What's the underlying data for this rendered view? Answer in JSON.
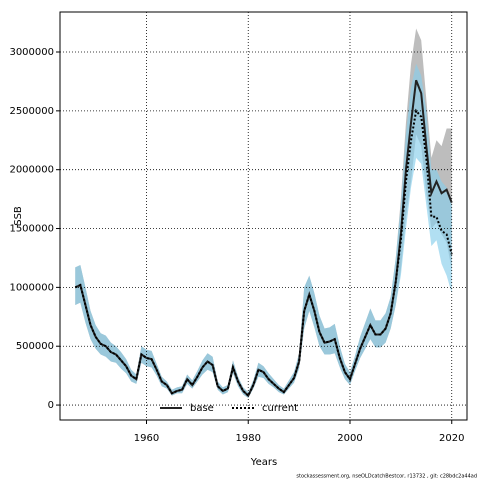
{
  "chart_data": {
    "type": "line",
    "xlabel": "Years",
    "ylabel": "SSB",
    "note": "stockassessment.org, nseOLDcatchBestcor, r13732 , git: c28bdc2a44ad",
    "x": [
      1946,
      1947,
      1948,
      1949,
      1950,
      1951,
      1952,
      1953,
      1954,
      1955,
      1956,
      1957,
      1958,
      1959,
      1960,
      1961,
      1962,
      1963,
      1964,
      1965,
      1966,
      1967,
      1968,
      1969,
      1970,
      1971,
      1972,
      1973,
      1974,
      1975,
      1976,
      1977,
      1978,
      1979,
      1980,
      1981,
      1982,
      1983,
      1984,
      1985,
      1986,
      1987,
      1988,
      1989,
      1990,
      1991,
      1992,
      1993,
      1994,
      1995,
      1996,
      1997,
      1998,
      1999,
      2000,
      2001,
      2002,
      2003,
      2004,
      2005,
      2006,
      2007,
      2008,
      2009,
      2010,
      2011,
      2012,
      2013,
      2014,
      2015,
      2016,
      2017,
      2018,
      2019,
      2020
    ],
    "series": [
      {
        "name": "base",
        "color": "#222222",
        "band_color": "#9a9a9a",
        "dash": false,
        "values": [
          1000000,
          1020000,
          850000,
          680000,
          580000,
          520000,
          500000,
          450000,
          430000,
          380000,
          330000,
          250000,
          220000,
          430000,
          400000,
          390000,
          300000,
          200000,
          170000,
          100000,
          120000,
          130000,
          220000,
          170000,
          240000,
          320000,
          370000,
          340000,
          160000,
          120000,
          140000,
          320000,
          200000,
          120000,
          80000,
          170000,
          300000,
          280000,
          220000,
          180000,
          140000,
          110000,
          170000,
          230000,
          370000,
          800000,
          940000,
          800000,
          620000,
          530000,
          540000,
          560000,
          400000,
          280000,
          220000,
          350000,
          480000,
          580000,
          680000,
          600000,
          600000,
          650000,
          780000,
          1050000,
          1450000,
          2000000,
          2400000,
          2760000,
          2650000,
          2200000,
          1800000,
          1900000,
          1800000,
          1830000,
          1720000
        ],
        "upper": [
          1170000,
          1190000,
          1000000,
          800000,
          680000,
          610000,
          590000,
          530000,
          500000,
          450000,
          390000,
          300000,
          260000,
          500000,
          470000,
          460000,
          350000,
          240000,
          200000,
          130000,
          150000,
          160000,
          260000,
          210000,
          290000,
          380000,
          440000,
          410000,
          200000,
          150000,
          170000,
          380000,
          240000,
          150000,
          110000,
          210000,
          360000,
          330000,
          270000,
          220000,
          170000,
          140000,
          210000,
          280000,
          440000,
          1000000,
          1100000,
          950000,
          760000,
          650000,
          660000,
          690000,
          500000,
          350000,
          280000,
          420000,
          580000,
          700000,
          820000,
          720000,
          720000,
          780000,
          920000,
          1250000,
          1750000,
          2400000,
          2900000,
          3200000,
          3100000,
          2600000,
          2100000,
          2250000,
          2200000,
          2350000,
          2350000
        ],
        "lower": [
          850000,
          870000,
          700000,
          560000,
          480000,
          430000,
          410000,
          370000,
          360000,
          310000,
          270000,
          200000,
          180000,
          360000,
          330000,
          320000,
          250000,
          160000,
          140000,
          80000,
          100000,
          100000,
          180000,
          140000,
          200000,
          260000,
          300000,
          280000,
          130000,
          90000,
          110000,
          270000,
          160000,
          90000,
          60000,
          140000,
          240000,
          230000,
          180000,
          150000,
          110000,
          90000,
          140000,
          190000,
          310000,
          650000,
          800000,
          660000,
          500000,
          430000,
          430000,
          440000,
          320000,
          220000,
          170000,
          290000,
          400000,
          480000,
          560000,
          490000,
          490000,
          530000,
          650000,
          850000,
          1150000,
          1600000,
          1900000,
          2300000,
          2200000,
          1800000,
          1500000,
          1550000,
          1450000,
          1380000,
          1150000
        ]
      },
      {
        "name": "current",
        "color": "#000000",
        "band_color": "#87ceeb",
        "dash": true,
        "values": [
          1000000,
          1020000,
          850000,
          680000,
          580000,
          520000,
          500000,
          450000,
          430000,
          380000,
          330000,
          250000,
          220000,
          430000,
          400000,
          390000,
          300000,
          200000,
          170000,
          100000,
          120000,
          130000,
          220000,
          170000,
          240000,
          320000,
          370000,
          340000,
          160000,
          120000,
          140000,
          320000,
          200000,
          120000,
          80000,
          170000,
          300000,
          280000,
          220000,
          180000,
          140000,
          110000,
          170000,
          230000,
          370000,
          800000,
          940000,
          800000,
          620000,
          530000,
          540000,
          560000,
          400000,
          280000,
          220000,
          350000,
          480000,
          580000,
          680000,
          600000,
          600000,
          650000,
          780000,
          1050000,
          1400000,
          1900000,
          2250000,
          2500000,
          2450000,
          2100000,
          1600000,
          1600000,
          1480000,
          1450000,
          1280000
        ],
        "upper": [
          1170000,
          1190000,
          1000000,
          800000,
          680000,
          610000,
          590000,
          530000,
          500000,
          450000,
          390000,
          300000,
          260000,
          500000,
          470000,
          460000,
          350000,
          240000,
          200000,
          130000,
          150000,
          160000,
          260000,
          210000,
          290000,
          380000,
          440000,
          410000,
          200000,
          150000,
          170000,
          380000,
          240000,
          150000,
          110000,
          210000,
          360000,
          330000,
          270000,
          220000,
          170000,
          140000,
          210000,
          280000,
          440000,
          1000000,
          1100000,
          950000,
          760000,
          650000,
          660000,
          690000,
          500000,
          350000,
          280000,
          420000,
          580000,
          700000,
          820000,
          720000,
          720000,
          780000,
          920000,
          1250000,
          1700000,
          2300000,
          2700000,
          2900000,
          2800000,
          2500000,
          2000000,
          2000000,
          1900000,
          1850000,
          1700000
        ],
        "lower": [
          850000,
          870000,
          700000,
          560000,
          480000,
          430000,
          410000,
          370000,
          360000,
          310000,
          270000,
          200000,
          180000,
          360000,
          330000,
          320000,
          250000,
          160000,
          140000,
          80000,
          100000,
          100000,
          180000,
          140000,
          200000,
          260000,
          300000,
          280000,
          130000,
          90000,
          110000,
          270000,
          160000,
          90000,
          60000,
          140000,
          240000,
          230000,
          180000,
          150000,
          110000,
          90000,
          140000,
          190000,
          310000,
          650000,
          800000,
          660000,
          500000,
          430000,
          430000,
          440000,
          320000,
          220000,
          170000,
          290000,
          400000,
          480000,
          560000,
          490000,
          490000,
          530000,
          650000,
          850000,
          1100000,
          1500000,
          1850000,
          2100000,
          2050000,
          1700000,
          1350000,
          1400000,
          1200000,
          1100000,
          950000
        ]
      }
    ],
    "xlim": [
      1943,
      2023
    ],
    "xticks": [
      1960,
      1980,
      2000,
      2020
    ],
    "ylim": [
      -127000,
      3340000
    ],
    "yticks": [
      0,
      500000,
      1000000,
      1500000,
      2000000,
      2500000,
      3000000
    ],
    "grid": true,
    "legend": "bottom"
  }
}
